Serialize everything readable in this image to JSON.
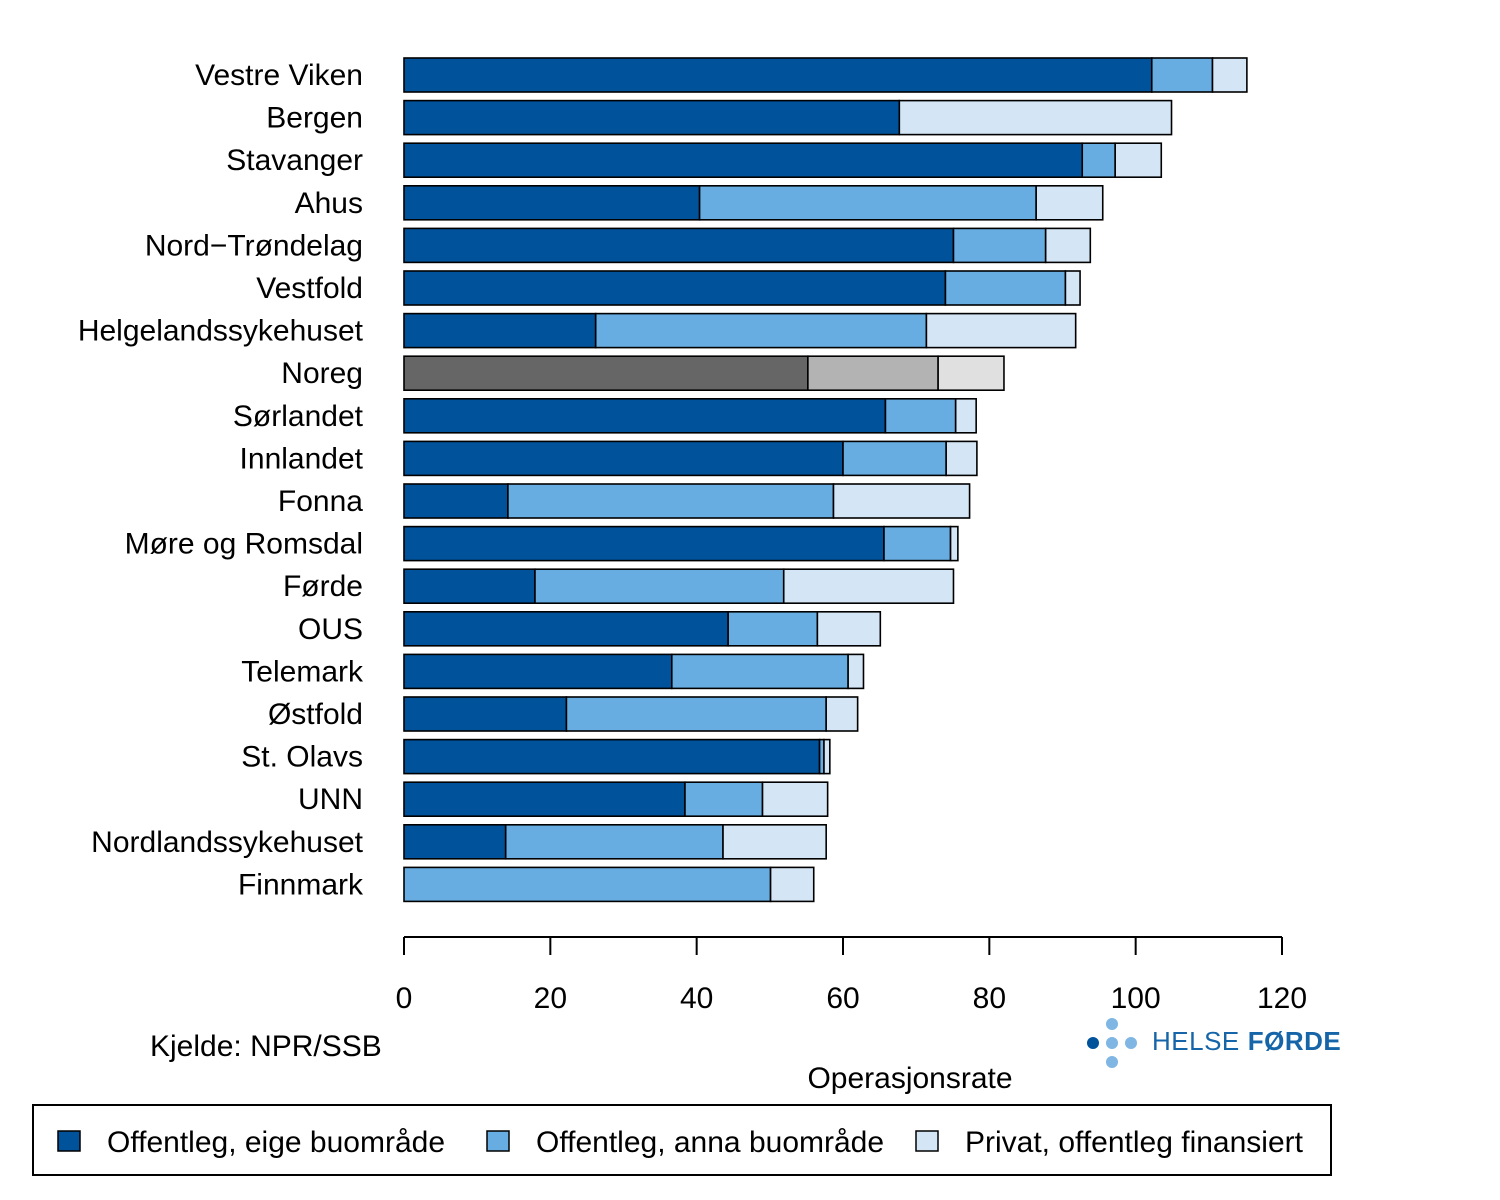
{
  "chart_data": {
    "type": "bar",
    "orientation": "horizontal",
    "stacked": true,
    "xlabel": "Operasjonsrate",
    "xlim": [
      0,
      120
    ],
    "xticks": [
      0,
      20,
      40,
      60,
      80,
      100,
      120
    ],
    "categories": [
      "Vestre Viken",
      "Bergen",
      "Stavanger",
      "Ahus",
      "Nord−Trøndelag",
      "Vestfold",
      "Helgelandssykehuset",
      "Noreg",
      "Sørlandet",
      "Innlandet",
      "Fonna",
      "Møre og Romsdal",
      "Førde",
      "OUS",
      "Telemark",
      "Østfold",
      "St. Olavs",
      "UNN",
      "Nordlandssykehuset",
      "Finnmark"
    ],
    "highlight_category": "Noreg",
    "series": [
      {
        "name": "Offentleg, eige buområde",
        "color": "#00529b",
        "highlight_color": "#666666",
        "values": [
          102.2,
          67.7,
          92.7,
          40.4,
          75.1,
          74.0,
          26.2,
          55.2,
          65.8,
          60.0,
          14.2,
          65.6,
          17.9,
          44.3,
          36.6,
          22.2,
          56.8,
          38.4,
          13.9,
          0.0
        ]
      },
      {
        "name": "Offentleg, anna buområde",
        "color": "#67ade1",
        "highlight_color": "#b3b3b3",
        "values": [
          8.3,
          0.0,
          4.5,
          46.0,
          12.6,
          16.4,
          45.2,
          17.8,
          9.6,
          14.1,
          44.5,
          9.1,
          34.0,
          12.2,
          24.1,
          35.5,
          0.6,
          10.6,
          29.7,
          50.1
        ]
      },
      {
        "name": "Privat, offentleg finansiert",
        "color": "#d4e6f6",
        "highlight_color": "#e0e0e0",
        "values": [
          4.7,
          37.2,
          6.3,
          9.1,
          6.1,
          2.0,
          20.4,
          9.0,
          2.8,
          4.2,
          18.6,
          1.0,
          23.2,
          8.6,
          2.1,
          4.3,
          0.8,
          8.9,
          14.1,
          5.9
        ]
      }
    ]
  },
  "source": "Kjelde: NPR/SSB",
  "logo": {
    "text_regular": "HELSE",
    "text_bold": "FØRDE"
  },
  "legend": {
    "items": [
      {
        "label": "Offentleg, eige buområde",
        "color": "#00529b"
      },
      {
        "label": "Offentleg, anna buområde",
        "color": "#67ade1"
      },
      {
        "label": "Privat, offentleg finansiert",
        "color": "#d4e6f6"
      }
    ]
  }
}
